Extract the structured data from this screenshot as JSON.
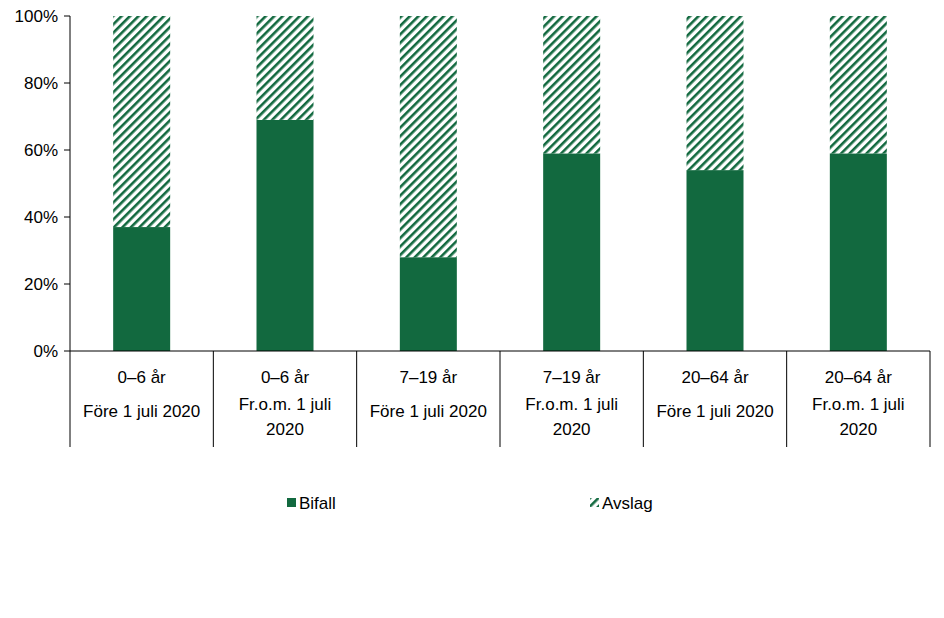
{
  "chart_data": {
    "type": "bar",
    "stacked": true,
    "categories": [
      [
        "0–6 år",
        "Före 1 juli 2020"
      ],
      [
        "0–6 år",
        "Fr.o.m. 1 juli 2020"
      ],
      [
        "7–19 år",
        "Före 1 juli 2020"
      ],
      [
        "7–19 år",
        "Fr.o.m. 1 juli 2020"
      ],
      [
        "20–64 år",
        "Före 1 juli 2020"
      ],
      [
        "20–64 år",
        "Fr.o.m. 1 juli 2020"
      ]
    ],
    "series": [
      {
        "name": "Bifall",
        "color": "#12693f",
        "values": [
          37,
          69,
          28,
          59,
          54,
          59
        ]
      },
      {
        "name": "Avslag",
        "color": "#12693f",
        "line_style": "hatched",
        "values": [
          63,
          31,
          72,
          41,
          46,
          41
        ]
      }
    ],
    "ylim": [
      0,
      100
    ],
    "yticks": [
      {
        "value": 0,
        "label": "0%"
      },
      {
        "value": 20,
        "label": "20%"
      },
      {
        "value": 40,
        "label": "40%"
      },
      {
        "value": 60,
        "label": "60%"
      },
      {
        "value": 80,
        "label": "80%"
      },
      {
        "value": 100,
        "label": "100%"
      }
    ],
    "legend": "bottom"
  }
}
